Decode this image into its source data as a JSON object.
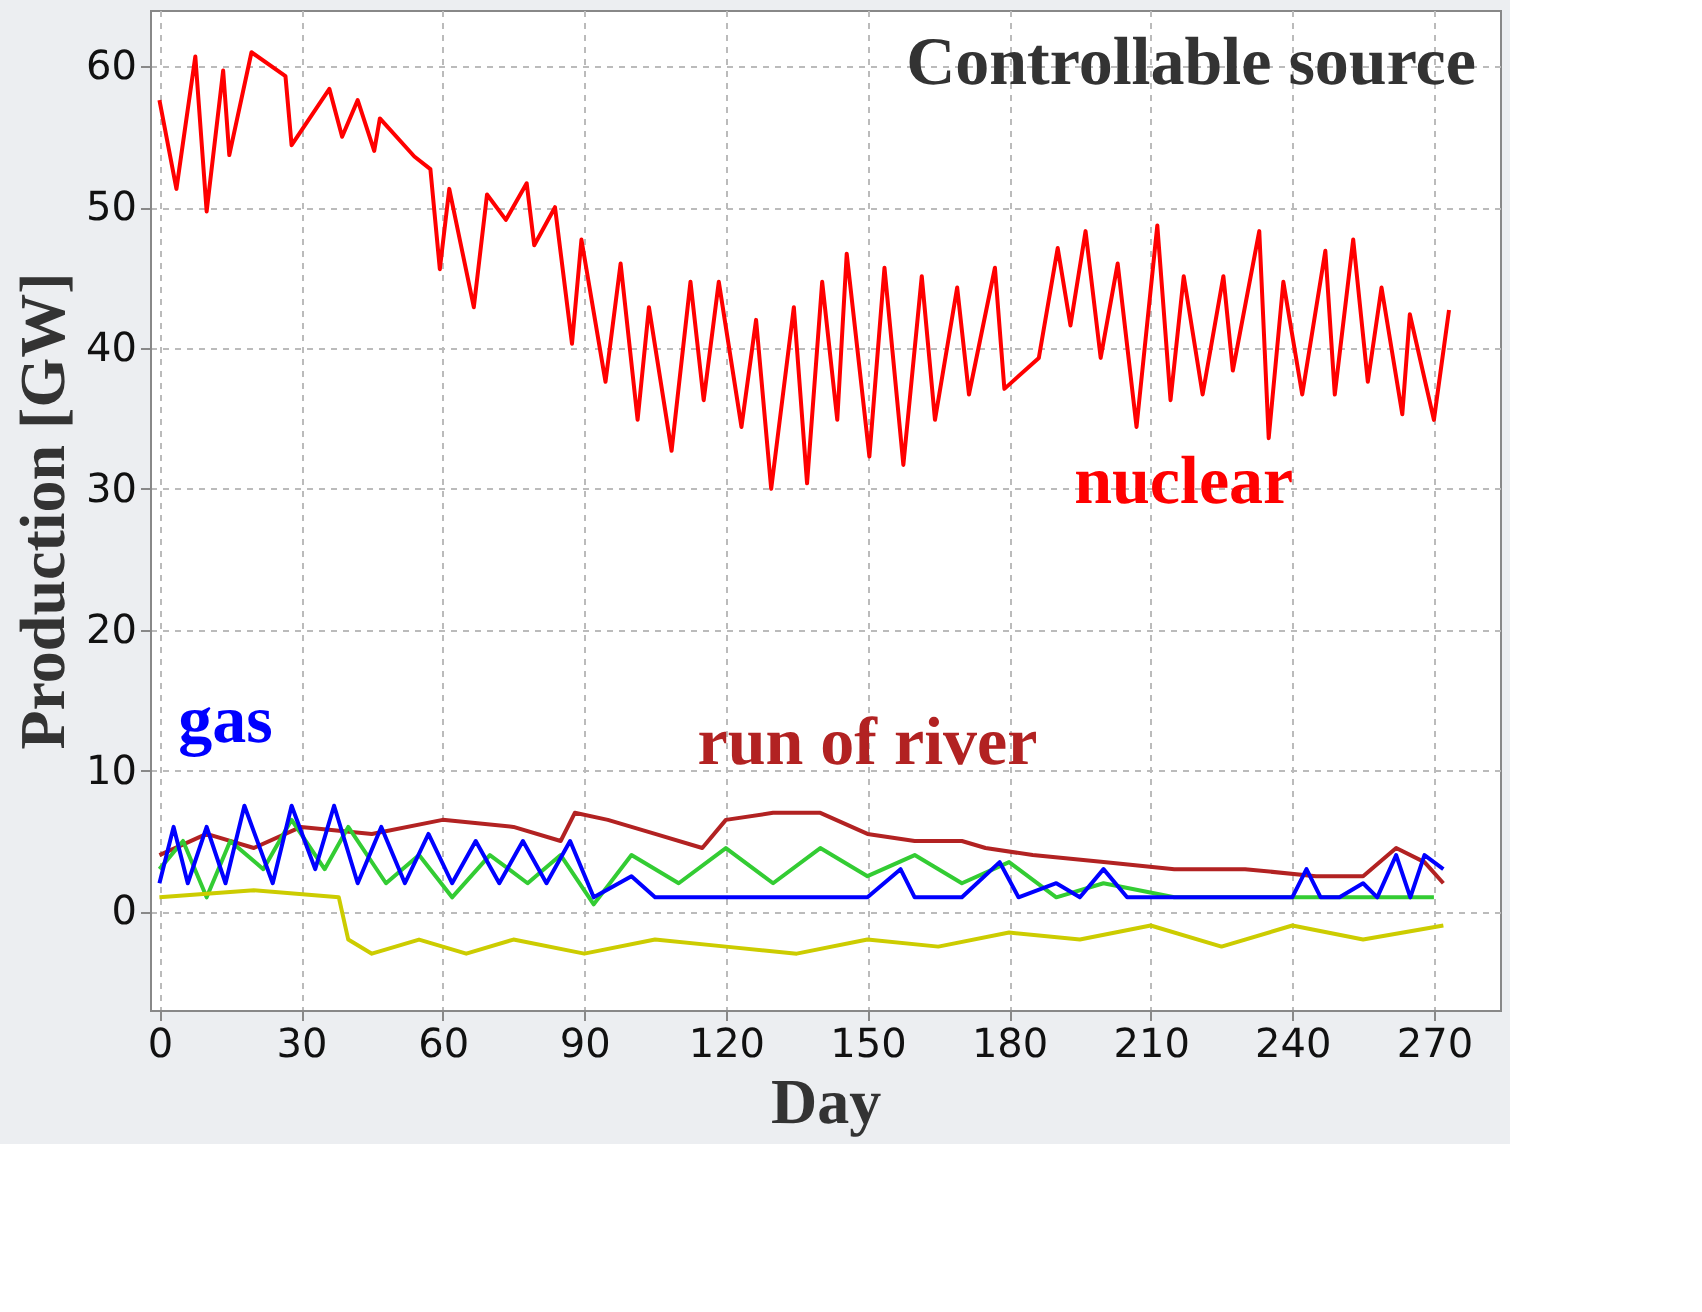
{
  "chart_data": {
    "type": "line",
    "title": "Controllable source",
    "xlabel": "Day",
    "ylabel": "Production [GW]",
    "xlim": [
      -2,
      284
    ],
    "ylim": [
      -7,
      64
    ],
    "xticks": [
      0,
      30,
      60,
      90,
      120,
      150,
      180,
      210,
      240,
      270
    ],
    "yticks": [
      0,
      10,
      20,
      30,
      40,
      50,
      60
    ],
    "grid": true,
    "marker": "none",
    "line_style": "solid",
    "series": [
      {
        "name": "nuclear",
        "color": "#ff0000",
        "x": [
          0,
          3.6,
          7.6,
          10,
          13.5,
          14.8,
          19.5,
          26.7,
          28,
          36,
          38.7,
          42,
          45.5,
          46.7,
          54,
          57.4,
          59.4,
          61.4,
          66.6,
          69.4,
          73.4,
          77.8,
          79.4,
          83.8,
          87.4,
          89.4,
          94.5,
          97.7,
          101.3,
          103.7,
          108.5,
          112.5,
          115.3,
          118.5,
          123.3,
          126.4,
          129.6,
          134.4,
          137.2,
          140.4,
          143.6,
          145.6,
          150.4,
          153.6,
          157.6,
          161.5,
          164.3,
          169,
          171.5,
          177,
          179,
          186.3,
          190.3,
          193,
          196.2,
          199.4,
          203,
          207,
          211.4,
          214.2,
          217,
          221,
          225.4,
          227.4,
          233,
          235,
          238.1,
          242.1,
          247,
          249,
          252.9,
          256,
          258.9,
          263.3,
          264.9,
          270,
          273.2
        ],
        "values": [
          57.6,
          51.3,
          60.7,
          49.7,
          59.7,
          53.7,
          61,
          59.3,
          54.4,
          58.4,
          55,
          57.6,
          54,
          56.3,
          53.6,
          52.7,
          45.6,
          51.3,
          42.9,
          50.9,
          49.1,
          51.7,
          47.3,
          50,
          40.3,
          47.7,
          37.6,
          46,
          34.9,
          42.9,
          32.7,
          44.7,
          36.3,
          44.7,
          34.4,
          42,
          30,
          42.9,
          30.4,
          44.7,
          34.9,
          46.7,
          32.3,
          45.7,
          31.7,
          45.1,
          34.9,
          44.3,
          36.7,
          45.7,
          37.1,
          39.3,
          47.1,
          41.6,
          48.3,
          39.3,
          46,
          34.4,
          48.7,
          36.3,
          45.1,
          36.7,
          45.1,
          38.4,
          48.3,
          33.6,
          44.7,
          36.7,
          46.9,
          36.7,
          47.7,
          37.6,
          44.3,
          35.3,
          42.4,
          34.9,
          42.7
        ]
      },
      {
        "name": "run of river",
        "color": "#b22222",
        "x": [
          0,
          10,
          20,
          30,
          45,
          60,
          75,
          85,
          88,
          95,
          105,
          115,
          120,
          130,
          140,
          150,
          160,
          170,
          175,
          185,
          200,
          215,
          230,
          245,
          255,
          262,
          268,
          272
        ],
        "values": [
          4,
          5.5,
          4.5,
          6,
          5.5,
          6.5,
          6,
          5,
          7,
          6.5,
          5.5,
          4.5,
          6.5,
          7,
          7,
          5.5,
          5,
          5,
          4.5,
          4,
          3.5,
          3,
          3,
          2.5,
          2.5,
          4.5,
          3.5,
          2
        ]
      },
      {
        "color": "#33cc33",
        "x": [
          0,
          5,
          10,
          15,
          22,
          28,
          35,
          40,
          48,
          55,
          62,
          70,
          78,
          85,
          92,
          100,
          110,
          120,
          130,
          140,
          150,
          160,
          170,
          180,
          190,
          200,
          215,
          240,
          270
        ],
        "values": [
          3,
          5,
          1,
          5,
          3,
          6.5,
          3,
          6,
          2,
          4,
          1,
          4,
          2,
          4,
          0.5,
          4,
          2,
          4.5,
          2,
          4.5,
          2.5,
          4,
          2,
          3.5,
          1,
          2,
          1,
          1,
          1
        ]
      },
      {
        "color": "#cccc00",
        "x": [
          0,
          20,
          38,
          40,
          45,
          55,
          65,
          75,
          90,
          105,
          120,
          135,
          150,
          165,
          180,
          195,
          210,
          225,
          240,
          255,
          272
        ],
        "values": [
          1,
          1.5,
          1,
          -2,
          -3,
          -2,
          -3,
          -2,
          -3,
          -2,
          -2.5,
          -3,
          -2,
          -2.5,
          -1.5,
          -2,
          -1,
          -2.5,
          -1,
          -2,
          -1
        ]
      },
      {
        "name": "gas",
        "color": "#0000ff",
        "x": [
          0,
          3,
          6,
          10,
          14,
          18,
          24,
          28,
          33,
          37,
          42,
          47,
          52,
          57,
          62,
          67,
          72,
          77,
          82,
          87,
          92,
          100,
          105,
          120,
          140,
          150,
          157,
          160,
          170,
          178,
          182,
          190,
          195,
          200,
          205,
          230,
          240,
          243,
          246,
          250,
          255,
          258,
          262,
          265,
          268,
          272
        ],
        "values": [
          2,
          6,
          2,
          6,
          2,
          7.5,
          2,
          7.5,
          3,
          7.5,
          2,
          6,
          2,
          5.5,
          2,
          5,
          2,
          5,
          2,
          5,
          1,
          2.5,
          1,
          1,
          1,
          1,
          3,
          1,
          1,
          3.5,
          1,
          2,
          1,
          3,
          1,
          1,
          1,
          3,
          1,
          1,
          2,
          1,
          4,
          1,
          4,
          3
        ]
      }
    ]
  }
}
